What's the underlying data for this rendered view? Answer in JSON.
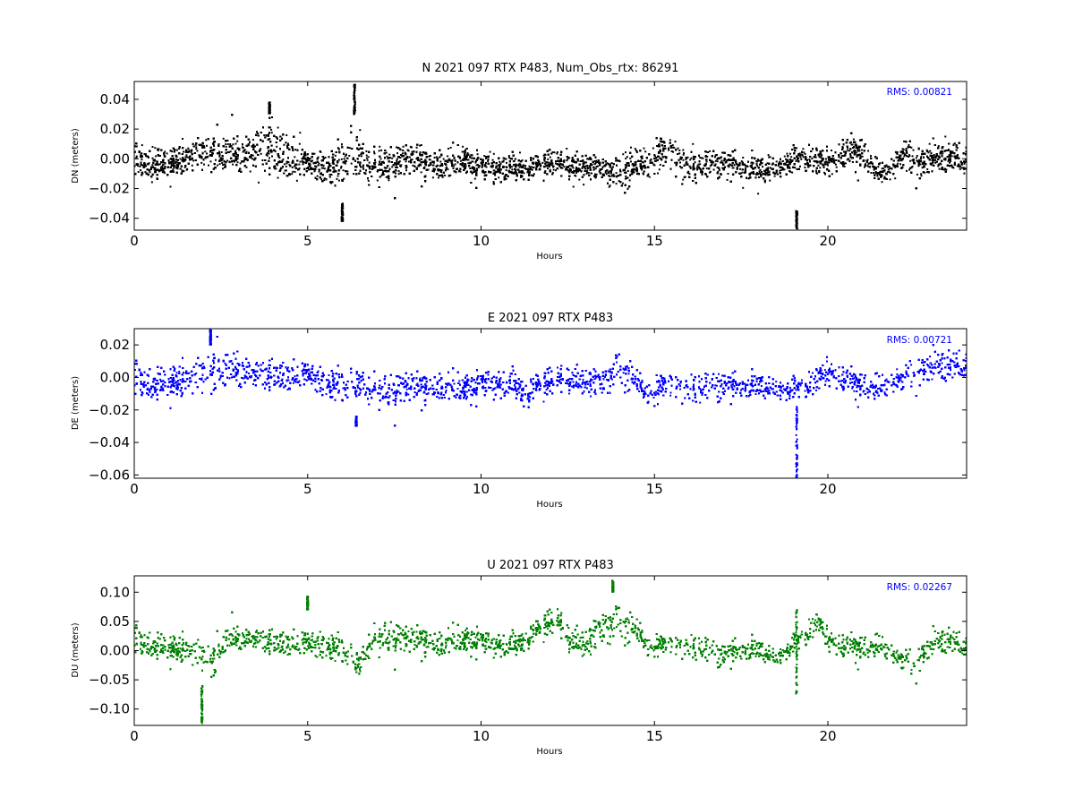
{
  "figure": {
    "background": "#ffffff"
  },
  "chart_data": [
    {
      "type": "scatter",
      "title": "N 2021 097 RTX  P483, Num_Obs_rtx: 86291",
      "xlabel": "Hours",
      "ylabel": "DN (meters)",
      "xlim": [
        0,
        24
      ],
      "ylim": [
        -0.048,
        0.052
      ],
      "xticks": [
        0,
        5,
        10,
        15,
        20
      ],
      "xtick_labels": [
        "0",
        "5",
        "10",
        "15",
        "20"
      ],
      "yticks": [
        -0.04,
        -0.02,
        0.0,
        0.02,
        0.04
      ],
      "ytick_labels": [
        "−0.04",
        "−0.02",
        "0.00",
        "0.02",
        "0.04"
      ],
      "color": "#000000",
      "annotation": "RMS:  0.00821",
      "annotation_color": "#0000ff",
      "grid": false,
      "series": [
        {
          "x": [
            0,
            0.5,
            1,
            1.5,
            2,
            2.5,
            3,
            3.5,
            3.9,
            4.3,
            4.8,
            5.3,
            5.8,
            6.2,
            6.6,
            7,
            7.5,
            8,
            8.5,
            9,
            9.5,
            10,
            10.5,
            11,
            11.5,
            12,
            12.5,
            13,
            13.5,
            14,
            14.3,
            14.7,
            15,
            15.4,
            15.8,
            16.2,
            16.6,
            17,
            17.5,
            18,
            18.5,
            19,
            19.5,
            20,
            20.5,
            21,
            21.5,
            21.8,
            22.2,
            22.7,
            23.2,
            23.6,
            24
          ],
          "center": [
            0,
            -0.004,
            -0.003,
            0,
            0.004,
            0.003,
            0.002,
            0.006,
            0.01,
            0.002,
            -0.002,
            -0.004,
            -0.006,
            0.002,
            -0.004,
            -0.006,
            -0.002,
            0,
            -0.003,
            -0.004,
            0,
            -0.006,
            -0.007,
            -0.005,
            -0.006,
            -0.004,
            -0.004,
            -0.005,
            -0.006,
            -0.01,
            -0.006,
            -0.004,
            0.002,
            0.006,
            -0.002,
            -0.006,
            -0.004,
            -0.003,
            -0.006,
            -0.008,
            -0.005,
            0,
            -0.002,
            -0.002,
            0.004,
            0.004,
            -0.01,
            -0.006,
            0.004,
            -0.002,
            0,
            0.002,
            -0.003
          ],
          "spread": [
            0.008,
            0.008,
            0.008,
            0.008,
            0.009,
            0.009,
            0.01,
            0.013,
            0.015,
            0.012,
            0.009,
            0.008,
            0.01,
            0.015,
            0.012,
            0.009,
            0.009,
            0.008,
            0.008,
            0.008,
            0.008,
            0.008,
            0.007,
            0.007,
            0.007,
            0.007,
            0.007,
            0.007,
            0.007,
            0.009,
            0.01,
            0.009,
            0.01,
            0.012,
            0.009,
            0.008,
            0.008,
            0.007,
            0.007,
            0.007,
            0.007,
            0.007,
            0.007,
            0.008,
            0.008,
            0.008,
            0.006,
            0.007,
            0.009,
            0.009,
            0.008,
            0.008,
            0.008
          ],
          "outliers": [
            {
              "x": 19.1,
              "y_min": -0.047,
              "y_max": -0.035
            },
            {
              "x": 6.0,
              "y_min": -0.042,
              "y_max": -0.03
            },
            {
              "x": 6.35,
              "y_min": 0.03,
              "y_max": 0.05
            },
            {
              "x": 3.9,
              "y_min": 0.03,
              "y_max": 0.038
            }
          ]
        }
      ]
    },
    {
      "type": "scatter",
      "title": "E 2021 097 RTX  P483",
      "xlabel": "Hours",
      "ylabel": "DE (meters)",
      "xlim": [
        0,
        24
      ],
      "ylim": [
        -0.062,
        0.03
      ],
      "xticks": [
        0,
        5,
        10,
        15,
        20
      ],
      "xtick_labels": [
        "0",
        "5",
        "10",
        "15",
        "20"
      ],
      "yticks": [
        -0.06,
        -0.04,
        -0.02,
        0.0,
        0.02
      ],
      "ytick_labels": [
        "−0.06",
        "−0.04",
        "−0.02",
        "0.00",
        "0.02"
      ],
      "color": "#0000ff",
      "annotation": "RMS:  0.00721",
      "annotation_color": "#0000ff",
      "grid": false,
      "series": [
        {
          "x": [
            0,
            0.5,
            1,
            1.5,
            2,
            2.5,
            3,
            3.5,
            4,
            4.5,
            5,
            5.5,
            6,
            6.5,
            7,
            7.5,
            8,
            8.5,
            9,
            9.5,
            10,
            10.5,
            11,
            11.3,
            11.6,
            12,
            12.5,
            13,
            13.5,
            14,
            14.3,
            14.7,
            15,
            15.5,
            16,
            16.5,
            17,
            17.5,
            18,
            18.5,
            19,
            19.5,
            20,
            20.5,
            21,
            21.5,
            22,
            22.5,
            23,
            23.5,
            24
          ],
          "center": [
            0,
            -0.004,
            -0.003,
            -0.002,
            0.002,
            0.004,
            0.004,
            0.002,
            0.002,
            0,
            0.003,
            -0.003,
            -0.006,
            -0.006,
            -0.008,
            -0.008,
            -0.005,
            -0.006,
            -0.006,
            -0.006,
            -0.004,
            -0.004,
            -0.003,
            -0.01,
            -0.006,
            -0.004,
            0,
            -0.003,
            -0.003,
            0.006,
            0.002,
            -0.008,
            -0.008,
            -0.002,
            -0.006,
            -0.006,
            -0.006,
            -0.006,
            -0.006,
            -0.006,
            -0.007,
            -0.006,
            0.004,
            -0.002,
            -0.005,
            -0.006,
            -0.002,
            0.004,
            0.006,
            0.008,
            0.005
          ],
          "spread": [
            0.008,
            0.008,
            0.008,
            0.008,
            0.009,
            0.01,
            0.009,
            0.008,
            0.007,
            0.007,
            0.007,
            0.007,
            0.008,
            0.008,
            0.008,
            0.008,
            0.007,
            0.007,
            0.007,
            0.007,
            0.007,
            0.007,
            0.007,
            0.008,
            0.007,
            0.007,
            0.007,
            0.007,
            0.007,
            0.009,
            0.008,
            0.007,
            0.008,
            0.007,
            0.007,
            0.007,
            0.007,
            0.006,
            0.006,
            0.006,
            0.006,
            0.006,
            0.007,
            0.006,
            0.006,
            0.007,
            0.007,
            0.007,
            0.008,
            0.008,
            0.007
          ],
          "outliers": [
            {
              "x": 19.1,
              "y_min": -0.062,
              "y_max": -0.018
            },
            {
              "x": 2.2,
              "y_min": 0.02,
              "y_max": 0.03
            },
            {
              "x": 6.4,
              "y_min": -0.03,
              "y_max": -0.024
            }
          ]
        }
      ]
    },
    {
      "type": "scatter",
      "title": "U 2021 097 RTX  P483",
      "xlabel": "Hours",
      "ylabel": "DU (meters)",
      "xlim": [
        0,
        24
      ],
      "ylim": [
        -0.128,
        0.128
      ],
      "xticks": [
        0,
        5,
        10,
        15,
        20
      ],
      "xtick_labels": [
        "0",
        "5",
        "10",
        "15",
        "20"
      ],
      "yticks": [
        -0.1,
        -0.05,
        0.0,
        0.05,
        0.1
      ],
      "ytick_labels": [
        "−0.10",
        "−0.05",
        "0.00",
        "0.05",
        "0.10"
      ],
      "color": "#008000",
      "annotation": "RMS:  0.02267",
      "annotation_color": "#0000ff",
      "grid": false,
      "series": [
        {
          "x": [
            0,
            0.5,
            1,
            1.5,
            2,
            2.3,
            2.6,
            3,
            3.5,
            4,
            4.5,
            5,
            5.5,
            6,
            6.5,
            6.8,
            7.3,
            7.8,
            8.3,
            8.8,
            9.3,
            9.8,
            10.3,
            10.8,
            11.3,
            11.8,
            12.2,
            12.6,
            13,
            13.5,
            14,
            14.4,
            14.8,
            15.2,
            15.6,
            16,
            16.5,
            17,
            17.5,
            18,
            18.5,
            19,
            19.5,
            19.7,
            20,
            20.5,
            21,
            21.5,
            22,
            22.5,
            23,
            23.5,
            24
          ],
          "center": [
            0.02,
            0.01,
            0.005,
            0,
            -0.01,
            -0.02,
            0.015,
            0.02,
            0.02,
            0.015,
            0.01,
            0.015,
            0.01,
            0,
            -0.03,
            0.015,
            0.025,
            0.02,
            0.02,
            0.01,
            0.02,
            0.02,
            0.01,
            0.01,
            0.02,
            0.04,
            0.05,
            0.02,
            0.01,
            0.04,
            0.05,
            0.04,
            0.01,
            0.01,
            0.015,
            0.01,
            0,
            -0.01,
            0,
            0,
            -0.01,
            0.01,
            0.03,
            0.05,
            0.02,
            0.005,
            0.005,
            0.01,
            -0.01,
            -0.02,
            0.01,
            0.02,
            0
          ],
          "spread": [
            0.018,
            0.018,
            0.018,
            0.018,
            0.02,
            0.02,
            0.018,
            0.016,
            0.016,
            0.016,
            0.016,
            0.02,
            0.018,
            0.018,
            0.018,
            0.02,
            0.022,
            0.018,
            0.018,
            0.018,
            0.018,
            0.018,
            0.016,
            0.016,
            0.016,
            0.018,
            0.018,
            0.02,
            0.02,
            0.025,
            0.025,
            0.022,
            0.018,
            0.016,
            0.016,
            0.016,
            0.018,
            0.016,
            0.016,
            0.014,
            0.014,
            0.014,
            0.016,
            0.012,
            0.016,
            0.016,
            0.016,
            0.016,
            0.018,
            0.018,
            0.018,
            0.018,
            0.016
          ],
          "outliers": [
            {
              "x": 1.95,
              "y_min": -0.125,
              "y_max": -0.06
            },
            {
              "x": 19.1,
              "y_min": -0.075,
              "y_max": 0.07
            },
            {
              "x": 13.8,
              "y_min": 0.1,
              "y_max": 0.12
            },
            {
              "x": 5.0,
              "y_min": 0.07,
              "y_max": 0.093
            }
          ]
        }
      ]
    }
  ]
}
